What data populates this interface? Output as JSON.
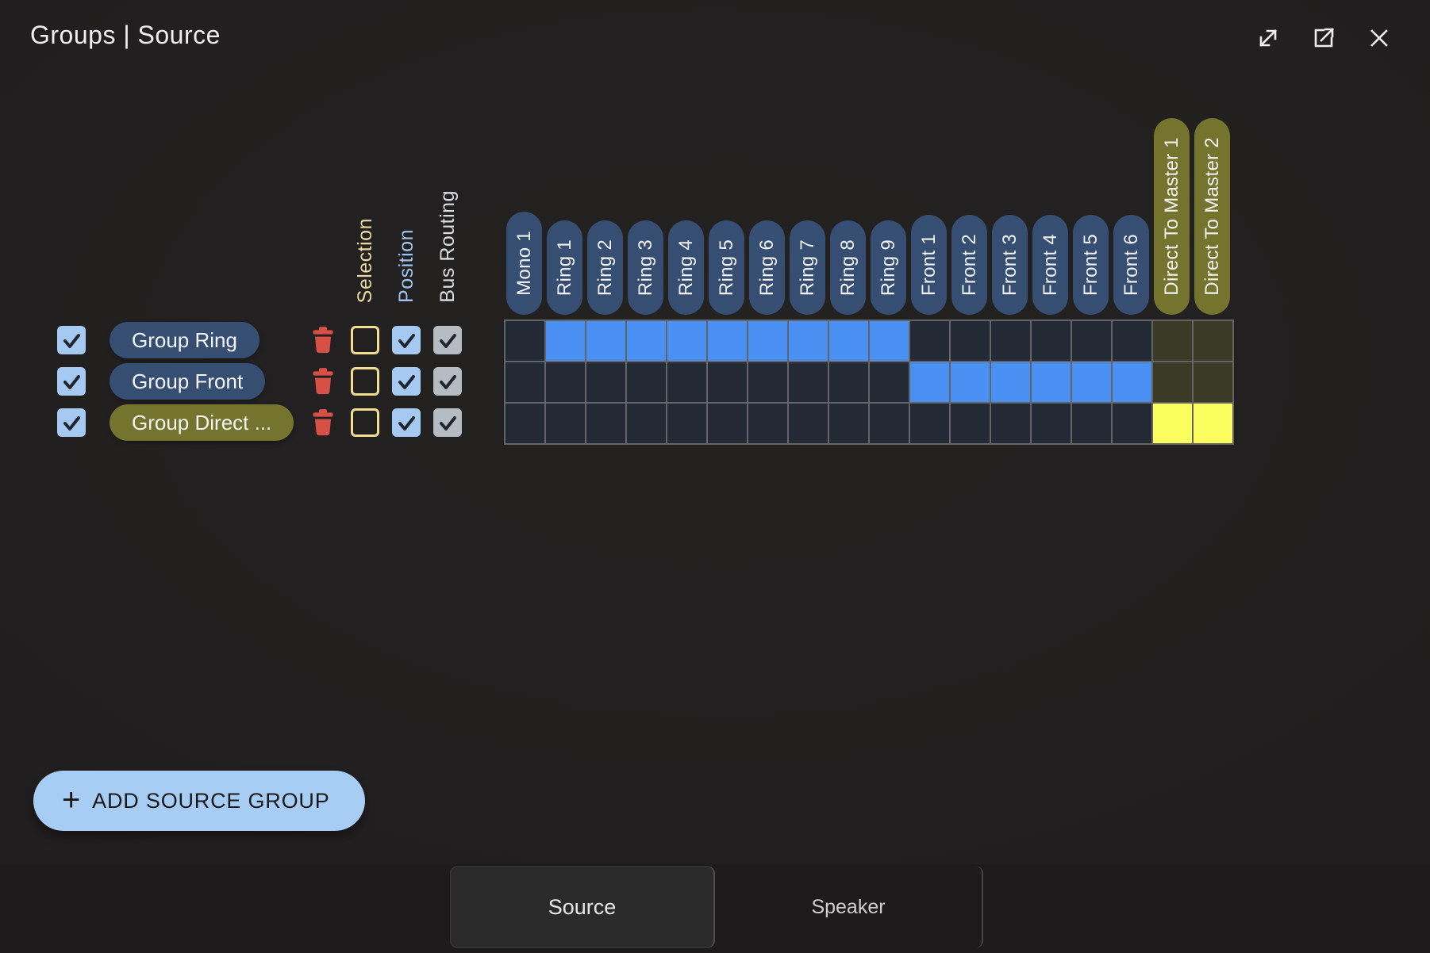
{
  "window": {
    "title": "Groups | Source",
    "controls": [
      {
        "name": "expand",
        "icon": "diagonal-arrows-icon"
      },
      {
        "name": "open-in-new-window",
        "icon": "box-arrow-icon"
      },
      {
        "name": "close",
        "icon": "x-icon"
      }
    ]
  },
  "option_columns": [
    {
      "key": "selection",
      "label": "Selection",
      "color": "#ead9a0"
    },
    {
      "key": "position",
      "label": "Position",
      "color": "#9ec3ee"
    },
    {
      "key": "bus-routing",
      "label": "Bus Routing",
      "color": "#dadde0"
    }
  ],
  "matrix": {
    "columns": [
      {
        "label": "Mono 1",
        "type": "bus"
      },
      {
        "label": "Ring 1",
        "type": "bus"
      },
      {
        "label": "Ring 2",
        "type": "bus"
      },
      {
        "label": "Ring 3",
        "type": "bus"
      },
      {
        "label": "Ring 4",
        "type": "bus"
      },
      {
        "label": "Ring 5",
        "type": "bus"
      },
      {
        "label": "Ring 6",
        "type": "bus"
      },
      {
        "label": "Ring 7",
        "type": "bus"
      },
      {
        "label": "Ring 8",
        "type": "bus"
      },
      {
        "label": "Ring 9",
        "type": "bus"
      },
      {
        "label": "Front 1",
        "type": "bus"
      },
      {
        "label": "Front 2",
        "type": "bus"
      },
      {
        "label": "Front 3",
        "type": "bus"
      },
      {
        "label": "Front 4",
        "type": "bus"
      },
      {
        "label": "Front 5",
        "type": "bus"
      },
      {
        "label": "Front 6",
        "type": "bus"
      },
      {
        "label": "Direct To Master 1",
        "type": "master"
      },
      {
        "label": "Direct To Master 2",
        "type": "master"
      }
    ],
    "rows": [
      {
        "label": "Group Ring",
        "pill": "blue",
        "enabled": true,
        "options": {
          "selection": false,
          "position": true,
          "bus_routing": true
        },
        "cells": [
          "off",
          "on",
          "on",
          "on",
          "on",
          "on",
          "on",
          "on",
          "on",
          "on",
          "off",
          "off",
          "off",
          "off",
          "off",
          "off",
          "moff",
          "moff"
        ]
      },
      {
        "label": "Group Front",
        "pill": "blue",
        "enabled": true,
        "options": {
          "selection": false,
          "position": true,
          "bus_routing": true
        },
        "cells": [
          "off",
          "off",
          "off",
          "off",
          "off",
          "off",
          "off",
          "off",
          "off",
          "off",
          "on",
          "on",
          "on",
          "on",
          "on",
          "on",
          "moff",
          "moff"
        ]
      },
      {
        "label": "Group Direct ...",
        "pill": "olive",
        "enabled": true,
        "options": {
          "selection": false,
          "position": true,
          "bus_routing": true
        },
        "cells": [
          "off",
          "off",
          "off",
          "off",
          "off",
          "off",
          "off",
          "off",
          "off",
          "off",
          "off",
          "off",
          "off",
          "off",
          "off",
          "off",
          "mon",
          "mon"
        ]
      }
    ]
  },
  "add_button": {
    "plus": "+",
    "label": "ADD SOURCE GROUP"
  },
  "footer": {
    "tabs": [
      {
        "label": "Source",
        "active": true
      },
      {
        "label": "Speaker",
        "active": false
      }
    ]
  },
  "colors": {
    "cell_off": "#232a36",
    "cell_on": "#4a90f2",
    "cell_master_off": "#3a3a26",
    "cell_master_on": "#fbfd5e",
    "pill_blue": "#374e73",
    "pill_olive": "#74742f",
    "grid_line": "#626466",
    "checkbox_blue": "#a5c9f1",
    "checkbox_gray": "#b6bdc2",
    "selection_border": "#f3dd8e",
    "trash_red": "#d65045",
    "add_button_bg": "#a8cdf4"
  }
}
